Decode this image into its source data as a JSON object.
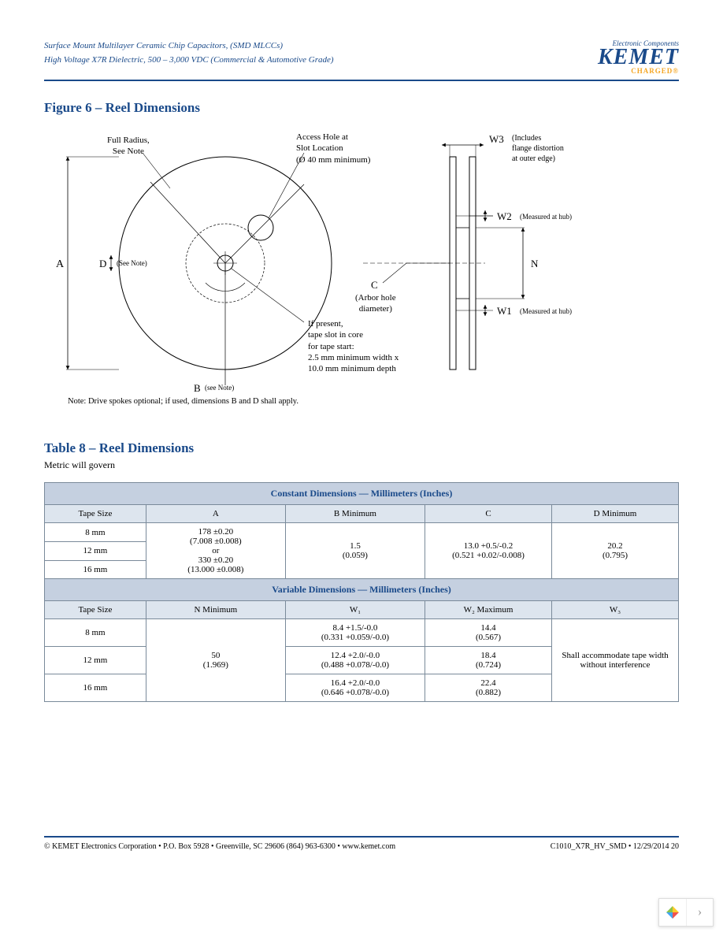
{
  "header": {
    "line1": "Surface Mount Multilayer Ceramic Chip Capacitors, (SMD MLCCs)",
    "line2": "High Voltage X7R Dielectric, 500 – 3,000 VDC (Commercial & Automotive Grade)",
    "logo_top": "Electronic Components",
    "logo_main": "KEMET",
    "logo_sub": "CHARGED®"
  },
  "figure": {
    "title": "Figure 6 – Reel Dimensions",
    "labels": {
      "full_radius": "Full Radius,\nSee Note",
      "access_hole": "Access Hole at\nSlot Location\n(Ø 40 mm minimum)",
      "A": "A",
      "D": "D",
      "D_note": "(See Note)",
      "B": "B",
      "B_note": "(see Note)",
      "C": "C",
      "C_note": "(Arbor hole\ndiameter)",
      "tape_slot": "If present,\ntape slot in core\nfor tape start:\n2.5 mm minimum width x\n10.0 mm minimum depth",
      "W3": "W3",
      "W3_note": "(Includes\nflange distortion\nat outer edge)",
      "W2": "W2",
      "W2_note": "(Measured at hub)",
      "N": "N",
      "W1": "W1",
      "W1_note": "(Measured at hub)"
    },
    "note": "Note:  Drive spokes optional; if used, dimensions B and D shall apply."
  },
  "table": {
    "title": "Table 8 – Reel Dimensions",
    "subtitle": "Metric will govern",
    "section1": "Constant Dimensions — Millimeters (Inches)",
    "section2": "Variable Dimensions — Millimeters (Inches)",
    "cols1": [
      "Tape Size",
      "A",
      "B Minimum",
      "C",
      "D Minimum"
    ],
    "cols2": [
      "Tape Size",
      "N Minimum",
      "W₁",
      "W₂ Maximum",
      "W₃"
    ],
    "sizes": [
      "8 mm",
      "12 mm",
      "16 mm"
    ],
    "A_val": "178 ±0.20\n(7.008 ±0.008)\nor\n330 ±0.20\n(13.000 ±0.008)",
    "B_val": "1.5\n(0.059)",
    "C_val": "13.0 +0.5/-0.2\n(0.521 +0.02/-0.008)",
    "D_val": "20.2\n(0.795)",
    "N_val": "50\n(1.969)",
    "W1_vals": [
      "8.4 +1.5/-0.0\n(0.331 +0.059/-0.0)",
      "12.4 +2.0/-0.0\n(0.488 +0.078/-0.0)",
      "16.4 +2.0/-0.0\n(0.646 +0.078/-0.0)"
    ],
    "W2_vals": [
      "14.4\n(0.567)",
      "18.4\n(0.724)",
      "22.4\n(0.882)"
    ],
    "W3_val": "Shall accommodate tape width without interference"
  },
  "footer": {
    "left": "© KEMET Electronics Corporation • P.O. Box 5928 • Greenville, SC 29606 (864) 963-6300 • www.kemet.com",
    "right": "C1010_X7R_HV_SMD • 12/29/2014 20"
  },
  "colors": {
    "brand_blue": "#1a4a8a",
    "brand_orange": "#f5a623",
    "table_header_bg": "#c5d0e0",
    "table_colhead_bg": "#dde5ee",
    "border": "#7a8a9a"
  }
}
